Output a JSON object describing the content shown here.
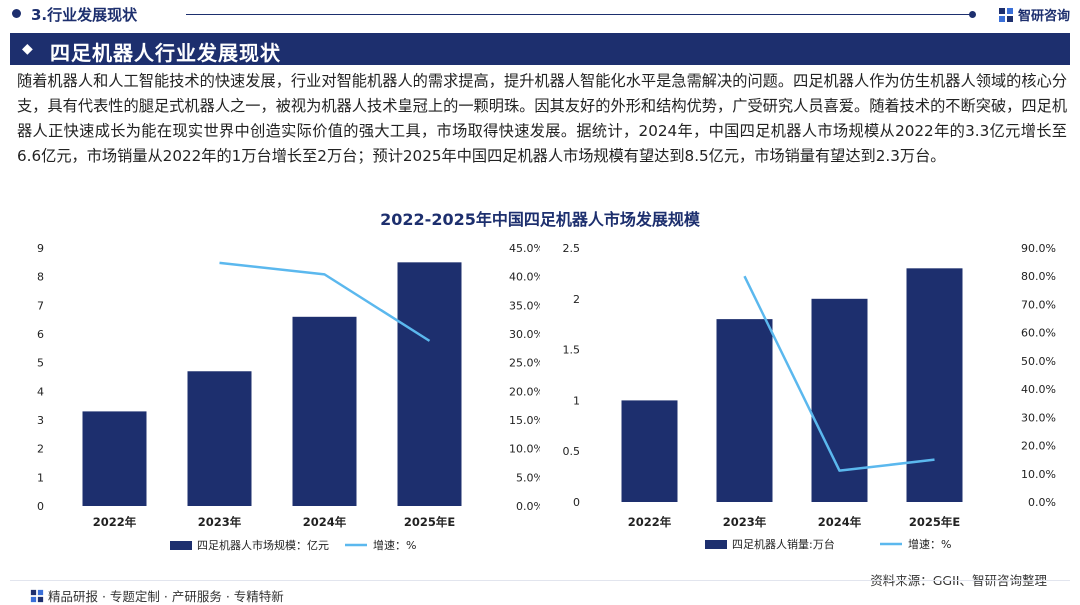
{
  "header": {
    "section_label": "3.行业发展现状",
    "brand": "智研咨询"
  },
  "banner": {
    "title": "四足机器人行业发展现状"
  },
  "body_text": "随着机器人和人工智能技术的快速发展，行业对智能机器人的需求提高，提升机器人智能化水平是急需解决的问题。四足机器人作为仿生机器人领域的核心分支，具有代表性的腿足式机器人之一，被视为机器人技术皇冠上的一颗明珠。因其友好的外形和结构优势，广受研究人员喜爱。随着技术的不断突破，四足机器人正快速成长为能在现实世界中创造实际价值的强大工具，市场取得快速发展。据统计，2024年，中国四足机器人市场规模从2022年的3.3亿元增长至6.6亿元，市场销量从2022年的1万台增长至2万台；预计2025年中国四足机器人市场规模有望达到8.5亿元，市场销量有望达到2.3万台。",
  "figure_title": "2022-2025年中国四足机器人市场发展规模",
  "colors": {
    "bar": "#1d2f6e",
    "line": "#5bb8ee",
    "brand": "#1d2f6e"
  },
  "chart_data": [
    {
      "type": "bar",
      "categories": [
        "2022年",
        "2023年",
        "2024年",
        "2025年E"
      ],
      "series": [
        {
          "name": "四足机器人市场规模：亿元",
          "kind": "bar",
          "axis": "left",
          "values": [
            3.3,
            4.7,
            6.6,
            8.5
          ]
        },
        {
          "name": "增速：%",
          "kind": "line",
          "axis": "right",
          "values": [
            null,
            42.4,
            40.4,
            28.8
          ]
        }
      ],
      "y_left": {
        "min": 0,
        "max": 9,
        "ticks": [
          "0",
          "1",
          "2",
          "3",
          "4",
          "5",
          "6",
          "7",
          "8",
          "9"
        ]
      },
      "y_right": {
        "min": 0,
        "max": 45,
        "ticks": [
          "0.0%",
          "5.0%",
          "10.0%",
          "15.0%",
          "20.0%",
          "25.0%",
          "30.0%",
          "35.0%",
          "40.0%",
          "45.0%"
        ]
      },
      "legend": {
        "bar": "四足机器人市场规模：亿元",
        "line": "增速：%"
      }
    },
    {
      "type": "bar",
      "categories": [
        "2022年",
        "2023年",
        "2024年",
        "2025年E"
      ],
      "series": [
        {
          "name": "四足机器人销量:万台",
          "kind": "bar",
          "axis": "left",
          "values": [
            1.0,
            1.8,
            2.0,
            2.3
          ]
        },
        {
          "name": "增速：%",
          "kind": "line",
          "axis": "right",
          "values": [
            null,
            80.0,
            11.1,
            15.0
          ]
        }
      ],
      "y_left": {
        "min": 0,
        "max": 2.5,
        "ticks": [
          "0",
          "0.5",
          "1",
          "1.5",
          "2",
          "2.5"
        ]
      },
      "y_right": {
        "min": 0,
        "max": 90,
        "ticks": [
          "0.0%",
          "10.0%",
          "20.0%",
          "30.0%",
          "40.0%",
          "50.0%",
          "60.0%",
          "70.0%",
          "80.0%",
          "90.0%"
        ]
      },
      "legend": {
        "bar": "四足机器人销量:万台",
        "line": "增速：%"
      }
    }
  ],
  "source": "资料来源：GGII、智研咨询整理",
  "footer": "精品研报 · 专题定制 · 产研服务 · 专精特新"
}
